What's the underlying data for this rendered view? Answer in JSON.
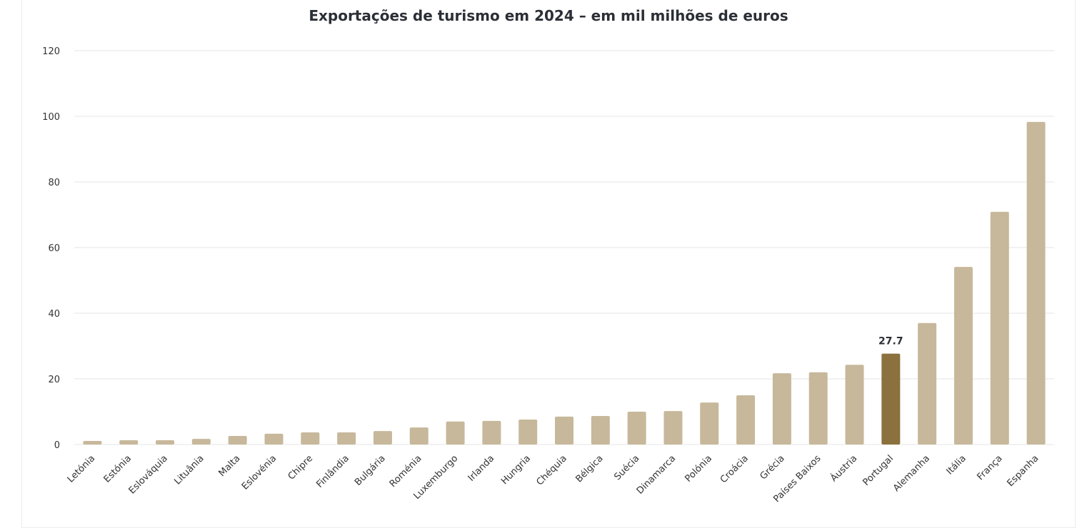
{
  "chart_data": {
    "type": "bar",
    "title": "Exportações de turismo em 2024 – em mil milhões de euros",
    "xlabel": "",
    "ylabel": "",
    "ylim": [
      0,
      120
    ],
    "yticks": [
      0,
      20,
      40,
      60,
      80,
      100,
      120
    ],
    "grid": true,
    "categories": [
      "Letónia",
      "Estónia",
      "Eslováquia",
      "Lituânia",
      "Malta",
      "Eslovénia",
      "Chipre",
      "Finlândia",
      "Bulgária",
      "Roménia",
      "Luxemburgo",
      "Irlanda",
      "Hungria",
      "Chéquia",
      "Bélgica",
      "Suécia",
      "Dinamarca",
      "Polónia",
      "Croácia",
      "Grécia",
      "Países Baixos",
      "Áustria",
      "Portugal",
      "Alemanha",
      "Itália",
      "França",
      "Espanha"
    ],
    "values": [
      1.1,
      1.3,
      1.3,
      1.7,
      2.6,
      3.3,
      3.7,
      3.7,
      4.1,
      5.2,
      7.0,
      7.2,
      7.6,
      8.5,
      8.7,
      10.0,
      10.2,
      12.8,
      15.0,
      21.7,
      22.0,
      24.3,
      27.7,
      37.0,
      54.1,
      70.9,
      98.3
    ],
    "highlight": {
      "category": "Portugal",
      "label": "27.7"
    },
    "colors": {
      "default": "#c7b89b",
      "highlight": "#8b713e",
      "grid": "#e6e6e6"
    }
  }
}
